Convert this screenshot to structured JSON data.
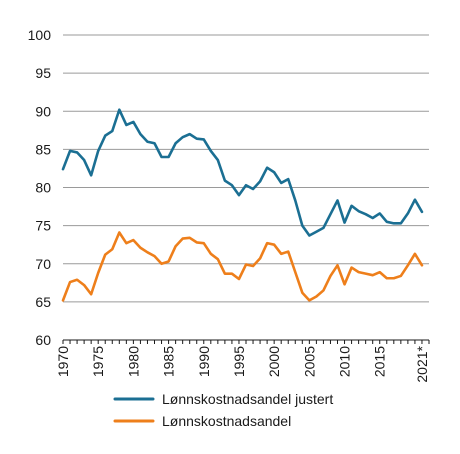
{
  "chart_data": {
    "type": "line",
    "title": "",
    "xlabel": "",
    "ylabel": "",
    "ylim": [
      60,
      100
    ],
    "xlim": [
      1970,
      2022
    ],
    "grid": "horizontal",
    "legend_position": "bottom",
    "x_tick_labels": [
      "1970",
      "1975",
      "1980",
      "1985",
      "1990",
      "1995",
      "2000",
      "2005",
      "2010",
      "2015",
      "2021*"
    ],
    "y_tick_labels": [
      "60",
      "65",
      "70",
      "75",
      "80",
      "85",
      "90",
      "95",
      "100"
    ],
    "x": [
      1970,
      1971,
      1972,
      1973,
      1974,
      1975,
      1976,
      1977,
      1978,
      1979,
      1980,
      1981,
      1982,
      1983,
      1984,
      1985,
      1986,
      1987,
      1988,
      1989,
      1990,
      1991,
      1992,
      1993,
      1994,
      1995,
      1996,
      1997,
      1998,
      1999,
      2000,
      2001,
      2002,
      2003,
      2004,
      2005,
      2006,
      2007,
      2008,
      2009,
      2010,
      2011,
      2012,
      2013,
      2014,
      2015,
      2016,
      2017,
      2018,
      2019,
      2020,
      2021,
      2022
    ],
    "series": [
      {
        "name": "Lønnskostnadsandel justert",
        "color": "#1b6f93",
        "values": [
          82.4,
          84.8,
          84.6,
          83.6,
          81.6,
          84.8,
          86.8,
          87.4,
          90.2,
          88.2,
          88.6,
          87.0,
          86.0,
          85.8,
          84.0,
          84.0,
          85.8,
          86.6,
          87.0,
          86.4,
          86.3,
          84.8,
          83.6,
          80.9,
          80.3,
          79.0,
          80.3,
          79.8,
          80.8,
          82.6,
          82.0,
          80.6,
          81.1,
          78.3,
          75.0,
          73.7,
          74.2,
          74.7,
          76.5,
          78.3,
          75.4,
          77.6,
          76.9,
          76.5,
          76.0,
          76.6,
          75.5,
          75.3,
          75.3,
          76.6,
          78.4,
          76.8,
          null
        ]
      },
      {
        "name": "Lønnskostnadsandel",
        "color": "#ee7f1b",
        "values": [
          65.2,
          67.6,
          67.9,
          67.2,
          66.0,
          68.8,
          71.2,
          71.9,
          74.1,
          72.7,
          73.1,
          72.1,
          71.5,
          71.0,
          70.0,
          70.3,
          72.3,
          73.3,
          73.4,
          72.8,
          72.7,
          71.3,
          70.6,
          68.7,
          68.7,
          68.0,
          69.9,
          69.7,
          70.7,
          72.7,
          72.5,
          71.3,
          71.6,
          68.9,
          66.2,
          65.2,
          65.7,
          66.5,
          68.4,
          69.8,
          67.3,
          69.5,
          68.9,
          68.7,
          68.5,
          68.9,
          68.1,
          68.1,
          68.4,
          69.8,
          71.3,
          69.8,
          null
        ]
      }
    ]
  }
}
